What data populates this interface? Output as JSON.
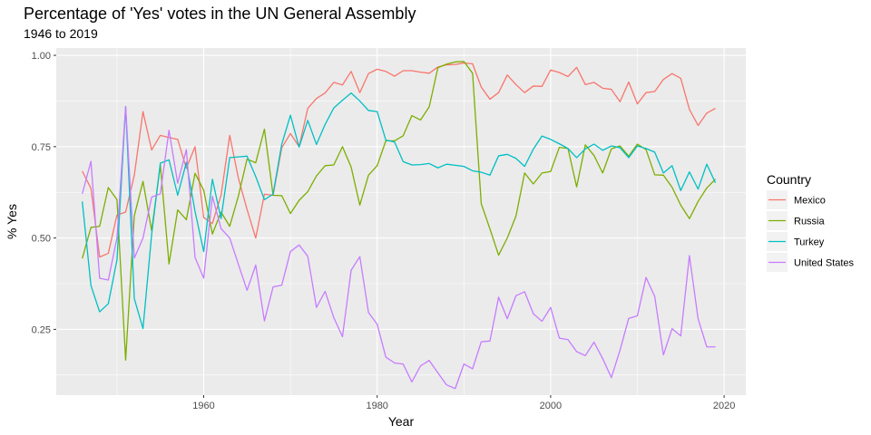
{
  "chart_data": {
    "type": "line",
    "title": "Percentage of 'Yes' votes in the UN General Assembly",
    "subtitle": "1946 to 2019",
    "xlabel": "Year",
    "ylabel": "% Yes",
    "xlim": [
      1943,
      2022.5
    ],
    "ylim": [
      0.07,
      1.02
    ],
    "x_ticks": [
      1960,
      1980,
      2000,
      2020
    ],
    "x_tick_labels": [
      "1960",
      "1980",
      "2000",
      "2020"
    ],
    "y_ticks": [
      0.25,
      0.5,
      0.75,
      1.0
    ],
    "y_tick_labels": [
      "0.25",
      "0.50",
      "0.75",
      "1.00"
    ],
    "grid": true,
    "legend": {
      "title": "Country",
      "position": "right"
    },
    "x": [
      1946,
      1947,
      1948,
      1949,
      1950,
      1951,
      1952,
      1953,
      1954,
      1955,
      1956,
      1957,
      1958,
      1959,
      1960,
      1961,
      1962,
      1963,
      1964,
      1965,
      1966,
      1967,
      1968,
      1969,
      1970,
      1971,
      1972,
      1973,
      1974,
      1975,
      1976,
      1977,
      1978,
      1979,
      1980,
      1981,
      1982,
      1983,
      1984,
      1985,
      1986,
      1987,
      1988,
      1989,
      1990,
      1991,
      1992,
      1993,
      1994,
      1995,
      1996,
      1997,
      1998,
      1999,
      2000,
      2001,
      2002,
      2003,
      2004,
      2005,
      2006,
      2007,
      2008,
      2009,
      2010,
      2011,
      2012,
      2013,
      2014,
      2015,
      2016,
      2017,
      2018,
      2019
    ],
    "series": [
      {
        "name": "Mexico",
        "color": "#F8766D",
        "values": [
          0.683,
          0.636,
          0.448,
          0.458,
          0.563,
          0.571,
          0.672,
          0.846,
          0.741,
          0.781,
          0.775,
          0.77,
          0.691,
          0.75,
          0.556,
          0.54,
          0.617,
          0.781,
          0.664,
          0.578,
          0.5,
          0.62,
          0.617,
          0.747,
          0.786,
          0.75,
          0.855,
          0.882,
          0.897,
          0.926,
          0.919,
          0.956,
          0.898,
          0.95,
          0.962,
          0.956,
          0.943,
          0.958,
          0.958,
          0.954,
          0.951,
          0.968,
          0.974,
          0.975,
          0.979,
          0.977,
          0.913,
          0.88,
          0.898,
          0.946,
          0.92,
          0.898,
          0.916,
          0.915,
          0.96,
          0.953,
          0.942,
          0.967,
          0.92,
          0.926,
          0.91,
          0.907,
          0.873,
          0.927,
          0.867,
          0.898,
          0.901,
          0.934,
          0.95,
          0.937,
          0.852,
          0.808,
          0.842,
          0.855
        ]
      },
      {
        "name": "Russia",
        "color": "#7CAE00",
        "values": [
          0.444,
          0.529,
          0.532,
          0.638,
          0.605,
          0.166,
          0.561,
          0.655,
          0.52,
          0.7,
          0.429,
          0.577,
          0.55,
          0.677,
          0.631,
          0.511,
          0.571,
          0.532,
          0.615,
          0.716,
          0.706,
          0.798,
          0.617,
          0.616,
          0.567,
          0.603,
          0.627,
          0.67,
          0.698,
          0.7,
          0.75,
          0.694,
          0.59,
          0.672,
          0.698,
          0.766,
          0.766,
          0.78,
          0.835,
          0.823,
          0.859,
          0.966,
          0.976,
          0.982,
          0.983,
          0.951,
          0.594,
          0.525,
          0.453,
          0.5,
          0.56,
          0.678,
          0.648,
          0.678,
          0.682,
          0.748,
          0.745,
          0.64,
          0.755,
          0.726,
          0.678,
          0.744,
          0.752,
          0.724,
          0.757,
          0.742,
          0.673,
          0.672,
          0.639,
          0.59,
          0.553,
          0.6,
          0.637,
          0.661
        ]
      },
      {
        "name": "Turkey",
        "color": "#00BFC4",
        "values": [
          0.6,
          0.37,
          0.298,
          0.32,
          0.44,
          0.86,
          0.334,
          0.252,
          0.51,
          0.705,
          0.714,
          0.617,
          0.707,
          0.573,
          0.463,
          0.661,
          0.553,
          0.72,
          0.722,
          0.724,
          0.668,
          0.605,
          0.62,
          0.757,
          0.836,
          0.749,
          0.822,
          0.756,
          0.811,
          0.856,
          0.877,
          0.897,
          0.875,
          0.849,
          0.846,
          0.768,
          0.763,
          0.709,
          0.7,
          0.701,
          0.704,
          0.692,
          0.702,
          0.699,
          0.696,
          0.684,
          0.68,
          0.672,
          0.725,
          0.729,
          0.718,
          0.696,
          0.743,
          0.779,
          0.77,
          0.758,
          0.745,
          0.72,
          0.744,
          0.757,
          0.74,
          0.752,
          0.747,
          0.72,
          0.752,
          0.745,
          0.735,
          0.678,
          0.698,
          0.63,
          0.681,
          0.634,
          0.702,
          0.651
        ]
      },
      {
        "name": "United States",
        "color": "#C77CFF",
        "values": [
          0.621,
          0.71,
          0.39,
          0.385,
          0.5,
          0.86,
          0.445,
          0.5,
          0.612,
          0.621,
          0.795,
          0.65,
          0.742,
          0.447,
          0.39,
          0.614,
          0.526,
          0.5,
          0.428,
          0.357,
          0.426,
          0.273,
          0.366,
          0.371,
          0.463,
          0.481,
          0.45,
          0.31,
          0.354,
          0.282,
          0.23,
          0.412,
          0.449,
          0.296,
          0.264,
          0.174,
          0.158,
          0.155,
          0.106,
          0.15,
          0.165,
          0.131,
          0.098,
          0.088,
          0.155,
          0.142,
          0.216,
          0.218,
          0.338,
          0.279,
          0.342,
          0.353,
          0.293,
          0.272,
          0.31,
          0.226,
          0.222,
          0.189,
          0.178,
          0.215,
          0.17,
          0.118,
          0.193,
          0.28,
          0.287,
          0.392,
          0.34,
          0.18,
          0.252,
          0.232,
          0.452,
          0.279,
          0.202,
          0.202
        ]
      }
    ]
  }
}
